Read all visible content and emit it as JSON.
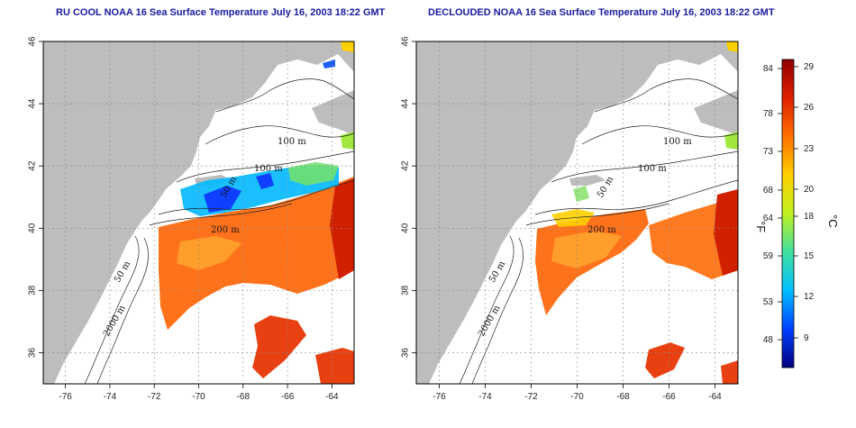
{
  "panels": [
    {
      "title": "RU COOL NOAA 16 Sea Surface Temperature July 16, 2003 18:22 GMT"
    },
    {
      "title": "DECLOUDED NOAA 16 Sea Surface Temperature July 16, 2003 18:22 GMT"
    }
  ],
  "axes": {
    "lon_ticks": [
      "-76",
      "-74",
      "-72",
      "-70",
      "-68",
      "-66",
      "-64"
    ],
    "lat_ticks": [
      "46",
      "44",
      "42",
      "40",
      "38",
      "36"
    ]
  },
  "contour_labels": [
    "100 m",
    "100 m",
    "50 m",
    "200 m",
    "50 m",
    "2000 m"
  ],
  "colorbar": {
    "fahrenheit_ticks": [
      "84",
      "78",
      "73",
      "68",
      "64",
      "59",
      "53",
      "48"
    ],
    "celsius_ticks": [
      "29",
      "26",
      "23",
      "20",
      "18",
      "15",
      "12",
      "9"
    ],
    "fahrenheit_unit": "°F",
    "celsius_unit": "°C",
    "colors": [
      "#000080",
      "#0040ff",
      "#00c0ff",
      "#40e0a0",
      "#c0f020",
      "#ffd000",
      "#ff7000",
      "#e02000",
      "#900000"
    ]
  },
  "colors": {
    "land": "#bdbdbd",
    "ocean": "#ffffff",
    "title": "#1a1aa0"
  }
}
